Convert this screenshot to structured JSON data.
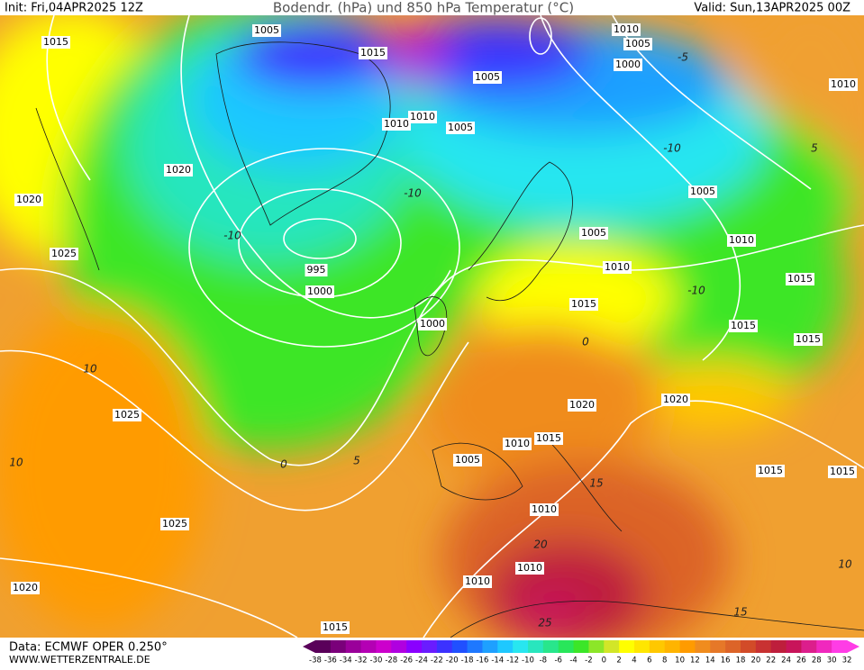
{
  "header": {
    "init": "Init: Fri,04APR2025 12Z",
    "title": "Bodendr. (hPa) und 850 hPa Temperatur (°C)",
    "valid": "Valid: Sun,13APR2025 00Z"
  },
  "footer": {
    "source": "Data: ECMWF OPER 0.250°",
    "website": "WWW.WETTERZENTRALE.DE"
  },
  "isobar_labels": [
    "1015",
    "1005",
    "1015",
    "1010",
    "1005",
    "1000",
    "1010",
    "1005",
    "1010",
    "1010",
    "1005",
    "1020",
    "1020",
    "1005",
    "1005",
    "1010",
    "1025",
    "995",
    "1000",
    "1010",
    "1015",
    "1015",
    "1000",
    "1015",
    "1015",
    "1020",
    "1020",
    "1025",
    "1010",
    "1015",
    "1005",
    "1015",
    "1015",
    "1010",
    "1025",
    "1010",
    "1010",
    "1020",
    "1015"
  ],
  "temperature_labels": [
    "-10",
    "-10",
    "-10",
    "-10",
    "5",
    "10",
    "10",
    "0",
    "5",
    "15",
    "20",
    "25",
    "15",
    "10",
    "-5",
    "0"
  ],
  "legend": {
    "labels": [
      -38,
      -36,
      -34,
      -32,
      -30,
      -28,
      -26,
      -24,
      -22,
      -20,
      -18,
      -16,
      -14,
      -12,
      -10,
      -8,
      -6,
      -4,
      -2,
      0,
      2,
      4,
      6,
      8,
      10,
      12,
      14,
      16,
      18,
      20,
      22,
      24,
      26,
      28,
      30,
      32
    ],
    "colors": [
      "#5a005a",
      "#7a007a",
      "#9a009a",
      "#b400b4",
      "#cc00cc",
      "#b000e0",
      "#8a00ff",
      "#6a1cff",
      "#3c32ff",
      "#2050ff",
      "#1e78ff",
      "#1ea0ff",
      "#1ec8ff",
      "#28e6f0",
      "#28e6be",
      "#28e68c",
      "#28e65a",
      "#3ce628",
      "#8ce628",
      "#d2e628",
      "#ffff00",
      "#ffe600",
      "#ffc800",
      "#ffb400",
      "#ff9b00",
      "#f08c1e",
      "#e67828",
      "#dc6428",
      "#d24b28",
      "#c83232",
      "#be1e3c",
      "#c8145a",
      "#dc1e8c",
      "#f028be",
      "#ff3ce6"
    ]
  }
}
